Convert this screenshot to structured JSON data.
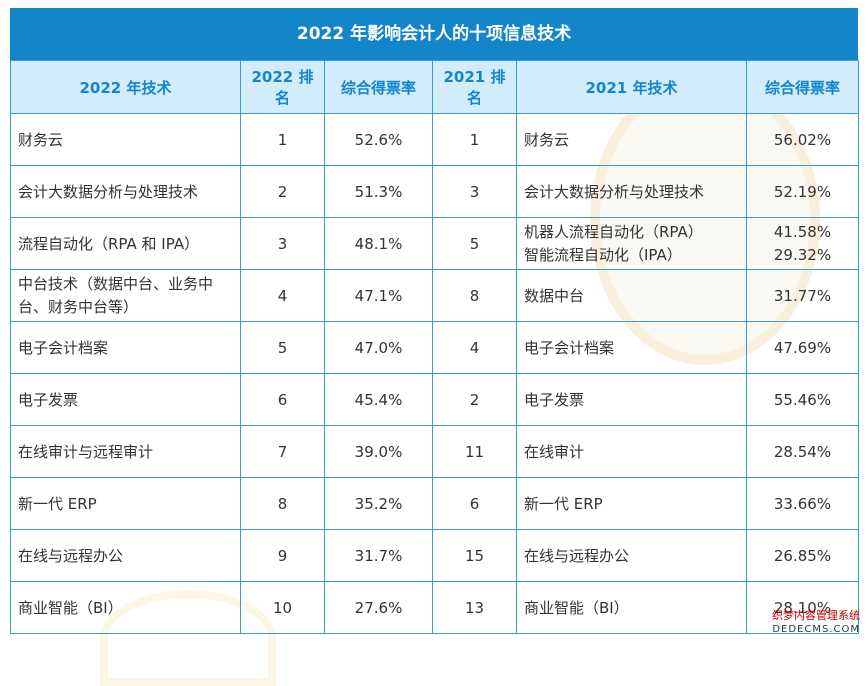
{
  "title": "2022 年影响会计人的十项信息技术",
  "headers": [
    "2022 年技术",
    "2022 排名",
    "综合得票率",
    "2021 排名",
    "2021 年技术",
    "综合得票率"
  ],
  "rows": [
    {
      "tech2022": "财务云",
      "rank2022": "1",
      "rate2022": "52.6%",
      "rank2021": "1",
      "tech2021": "财务云",
      "rate2021": "56.02%"
    },
    {
      "tech2022": "会计大数据分析与处理技术",
      "rank2022": "2",
      "rate2022": "51.3%",
      "rank2021": "3",
      "tech2021": "会计大数据分析与处理技术",
      "rate2021": "52.19%"
    },
    {
      "tech2022": "流程自动化（RPA 和 IPA）",
      "rank2022": "3",
      "rate2022": "48.1%",
      "rank2021": "5",
      "tech2021a": "机器人流程自动化（RPA）",
      "tech2021b": "智能流程自动化（IPA）",
      "rate2021a": "41.58%",
      "rate2021b": "29.32%"
    },
    {
      "tech2022": "中台技术（数据中台、业务中台、财务中台等）",
      "rank2022": "4",
      "rate2022": "47.1%",
      "rank2021": "8",
      "tech2021": "数据中台",
      "rate2021": "31.77%"
    },
    {
      "tech2022": "电子会计档案",
      "rank2022": "5",
      "rate2022": "47.0%",
      "rank2021": "4",
      "tech2021": "电子会计档案",
      "rate2021": "47.69%"
    },
    {
      "tech2022": "电子发票",
      "rank2022": "6",
      "rate2022": "45.4%",
      "rank2021": "2",
      "tech2021": "电子发票",
      "rate2021": "55.46%"
    },
    {
      "tech2022": "在线审计与远程审计",
      "rank2022": "7",
      "rate2022": "39.0%",
      "rank2021": "11",
      "tech2021": "在线审计",
      "rate2021": "28.54%"
    },
    {
      "tech2022": "新一代 ERP",
      "rank2022": "8",
      "rate2022": "35.2%",
      "rank2021": "6",
      "tech2021": "新一代 ERP",
      "rate2021": "33.66%"
    },
    {
      "tech2022": "在线与远程办公",
      "rank2022": "9",
      "rate2022": "31.7%",
      "rank2021": "15",
      "tech2021": "在线与远程办公",
      "rate2021": "26.85%"
    },
    {
      "tech2022": "商业智能（BI）",
      "rank2022": "10",
      "rate2022": "27.6%",
      "rank2021": "13",
      "tech2021": "商业智能（BI）",
      "rate2021": "28.10%"
    }
  ],
  "badge": {
    "line1": "织梦内容管理系统",
    "line2": "DEDECMS.COM"
  },
  "colors": {
    "header_bar": "#1585c9",
    "header_row": "#d3ecfb",
    "border": "#3a9ad8",
    "header_text": "#1486cc"
  }
}
